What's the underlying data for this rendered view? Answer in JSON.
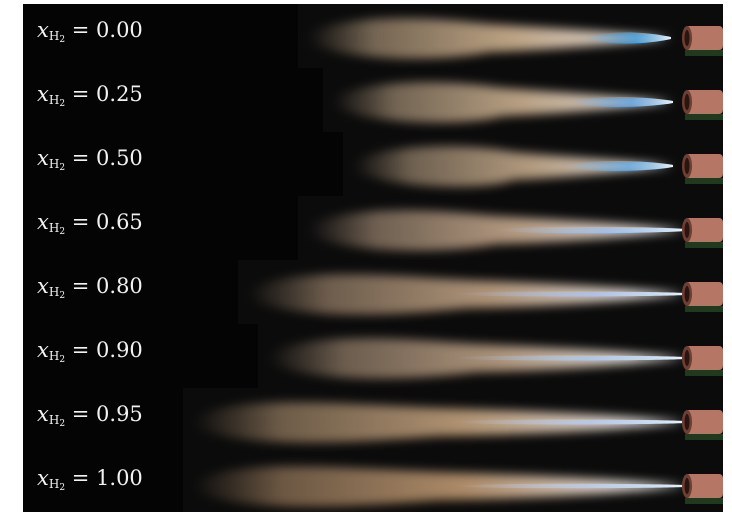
{
  "rows": [
    {
      "symbol": "x",
      "sub": "H",
      "subsub": "2",
      "eq": "=",
      "value": "0.00",
      "flame_color": "#f3d1a8",
      "core_color": "#4bb6ff",
      "strip": "short"
    },
    {
      "symbol": "x",
      "sub": "H",
      "subsub": "2",
      "eq": "=",
      "value": "0.25",
      "flame_color": "#f0d0aa",
      "core_color": "#6ab6ff",
      "strip": "short"
    },
    {
      "symbol": "x",
      "sub": "H",
      "subsub": "2",
      "eq": "=",
      "value": "0.50",
      "flame_color": "#e7c8a3",
      "core_color": "#6dbdff",
      "strip": "short"
    },
    {
      "symbol": "x",
      "sub": "H",
      "subsub": "2",
      "eq": "=",
      "value": "0.65",
      "flame_color": "#e9c7a6",
      "core_color": "#9fc7ff",
      "strip": "medium"
    },
    {
      "symbol": "x",
      "sub": "H",
      "subsub": "2",
      "eq": "=",
      "value": "0.80",
      "flame_color": "#e4c09c",
      "core_color": "#a9c7ff",
      "strip": "long"
    },
    {
      "symbol": "x",
      "sub": "H",
      "subsub": "2",
      "eq": "=",
      "value": "0.90",
      "flame_color": "#e0bf9e",
      "core_color": "#abd0ff",
      "strip": "long"
    },
    {
      "symbol": "x",
      "sub": "H",
      "subsub": "2",
      "eq": "=",
      "value": "0.95",
      "flame_color": "#e6bf93",
      "core_color": "#b6d0ff",
      "strip": "longest"
    },
    {
      "symbol": "x",
      "sub": "H",
      "subsub": "2",
      "eq": "=",
      "value": "1.00",
      "flame_color": "#e1b486",
      "core_color": "#bcd4ff",
      "strip": "longest"
    }
  ],
  "colors": {
    "background": "#040404",
    "label_text": "#f2f2f2",
    "burner": "#b57665",
    "burner_dark": "#6e3e33",
    "ground": "#1f3a1e"
  }
}
